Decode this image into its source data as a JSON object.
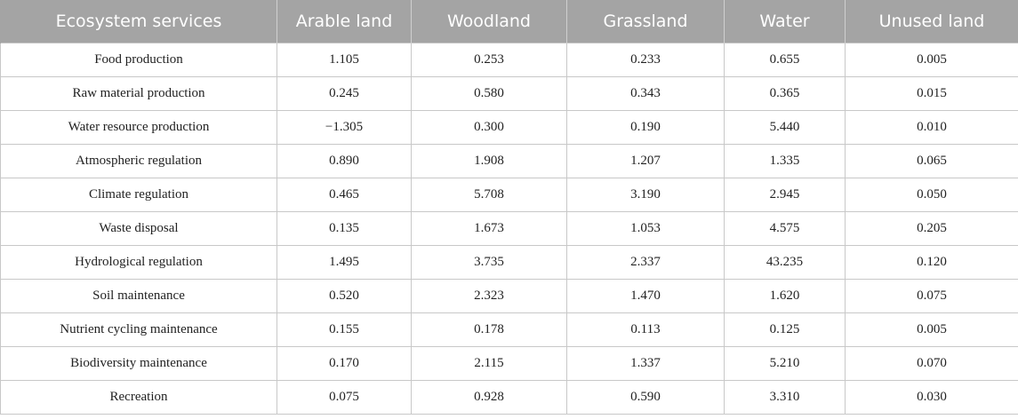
{
  "table": {
    "headers": [
      "Ecosystem services",
      "Arable land",
      "Woodland",
      "Grassland",
      "Water",
      "Unused land"
    ],
    "rows": [
      [
        "Food production",
        "1.105",
        "0.253",
        "0.233",
        "0.655",
        "0.005"
      ],
      [
        "Raw material production",
        "0.245",
        "0.580",
        "0.343",
        "0.365",
        "0.015"
      ],
      [
        "Water resource production",
        "−1.305",
        "0.300",
        "0.190",
        "5.440",
        "0.010"
      ],
      [
        "Atmospheric regulation",
        "0.890",
        "1.908",
        "1.207",
        "1.335",
        "0.065"
      ],
      [
        "Climate regulation",
        "0.465",
        "5.708",
        "3.190",
        "2.945",
        "0.050"
      ],
      [
        "Waste disposal",
        "0.135",
        "1.673",
        "1.053",
        "4.575",
        "0.205"
      ],
      [
        "Hydrological regulation",
        "1.495",
        "3.735",
        "2.337",
        "43.235",
        "0.120"
      ],
      [
        "Soil maintenance",
        "0.520",
        "2.323",
        "1.470",
        "1.620",
        "0.075"
      ],
      [
        "Nutrient cycling maintenance",
        "0.155",
        "0.178",
        "0.113",
        "0.125",
        "0.005"
      ],
      [
        "Biodiversity maintenance",
        "0.170",
        "2.115",
        "1.337",
        "5.210",
        "0.070"
      ],
      [
        "Recreation",
        "0.075",
        "0.928",
        "0.590",
        "3.310",
        "0.030"
      ]
    ]
  }
}
